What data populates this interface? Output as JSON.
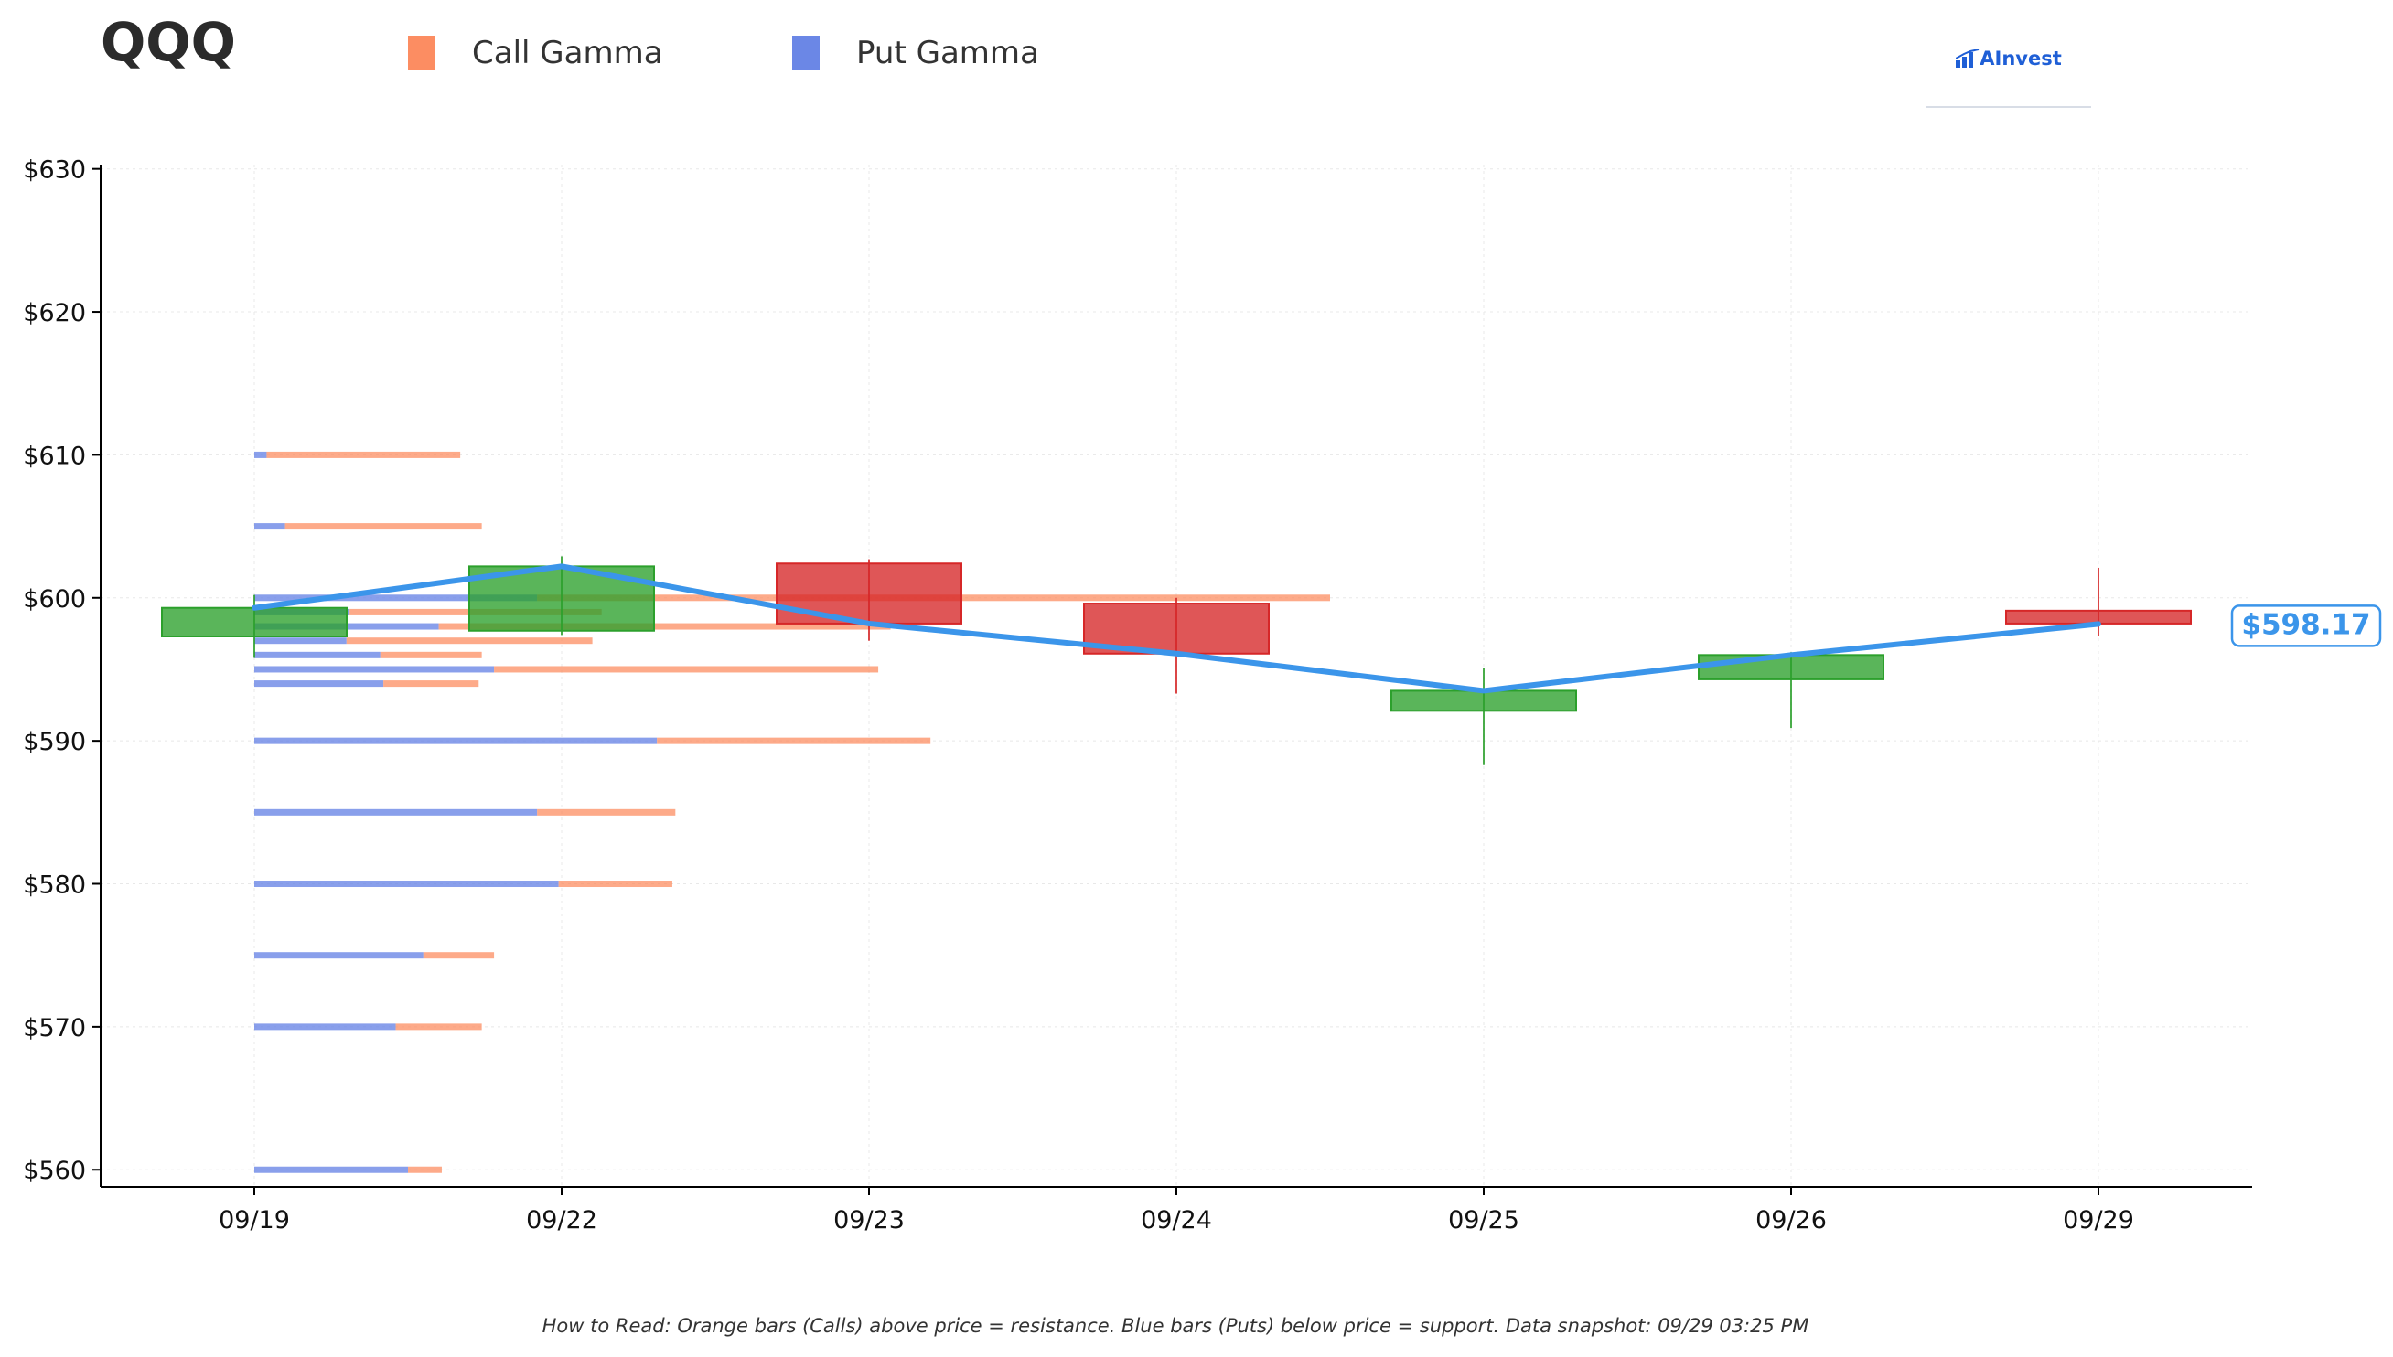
{
  "header": {
    "ticker": "QQQ",
    "logo_text": "AInvest"
  },
  "legend": [
    {
      "label": "Call Gamma",
      "color": "#fc8d62"
    },
    {
      "label": "Put Gamma",
      "color": "#6b87e6"
    }
  ],
  "footnote": "How to Read: Orange bars (Calls) above price = resistance. Blue bars (Puts) below price = support. Data snapshot: 09/29 03:25 PM",
  "chart_data": {
    "type": "candlestick",
    "ticker": "QQQ",
    "categories": [
      "09/19",
      "09/22",
      "09/23",
      "09/24",
      "09/25",
      "09/26",
      "09/29"
    ],
    "ylim": [
      558.8,
      630.3
    ],
    "y_ticks": [
      560,
      570,
      580,
      590,
      600,
      610,
      620,
      630
    ],
    "y_tick_labels": [
      "$560",
      "$570",
      "$580",
      "$590",
      "$600",
      "$610",
      "$620",
      "$630"
    ],
    "grid": true,
    "colors": {
      "up": "#2ca02c",
      "down": "#d62728",
      "line": "#3b95ea",
      "call": "#fc8d62",
      "put": "#6b87e6"
    },
    "candles": [
      {
        "date": "09/19",
        "open": 597.3,
        "close": 599.3,
        "high": 600.2,
        "low": 595.8
      },
      {
        "date": "09/22",
        "open": 597.7,
        "close": 602.2,
        "high": 602.9,
        "low": 597.4
      },
      {
        "date": "09/23",
        "open": 602.4,
        "close": 598.2,
        "high": 602.7,
        "low": 597.0
      },
      {
        "date": "09/24",
        "open": 599.6,
        "close": 596.1,
        "high": 600.0,
        "low": 593.3
      },
      {
        "date": "09/25",
        "open": 592.1,
        "close": 593.5,
        "high": 595.1,
        "low": 588.3
      },
      {
        "date": "09/26",
        "open": 594.3,
        "close": 596.0,
        "high": 596.2,
        "low": 590.9
      },
      {
        "date": "09/29",
        "open": 599.1,
        "close": 598.2,
        "high": 602.1,
        "low": 597.3
      }
    ],
    "close_line": [
      599.3,
      602.2,
      598.2,
      596.1,
      593.5,
      596.0,
      598.17
    ],
    "last_price": 598.17,
    "last_price_label": "$598.17",
    "gamma_bars": [
      {
        "strike": 610,
        "put": 0.04,
        "call": 0.63
      },
      {
        "strike": 605,
        "put": 0.1,
        "call": 0.64
      },
      {
        "strike": 600,
        "put": 0.92,
        "call": 2.58
      },
      {
        "strike": 599,
        "put": 0.31,
        "call": 0.82
      },
      {
        "strike": 598,
        "put": 0.6,
        "call": 1.47
      },
      {
        "strike": 597,
        "put": 0.3,
        "call": 0.8
      },
      {
        "strike": 596,
        "put": 0.41,
        "call": 0.33
      },
      {
        "strike": 595,
        "put": 0.78,
        "call": 1.25
      },
      {
        "strike": 594,
        "put": 0.42,
        "call": 0.31
      },
      {
        "strike": 590,
        "put": 1.31,
        "call": 0.89
      },
      {
        "strike": 585,
        "put": 0.92,
        "call": 0.45
      },
      {
        "strike": 580,
        "put": 0.99,
        "call": 0.37
      },
      {
        "strike": 575,
        "put": 0.55,
        "call": 0.23
      },
      {
        "strike": 570,
        "put": 0.46,
        "call": 0.28
      },
      {
        "strike": 560,
        "put": 0.5,
        "call": 0.11
      }
    ]
  }
}
